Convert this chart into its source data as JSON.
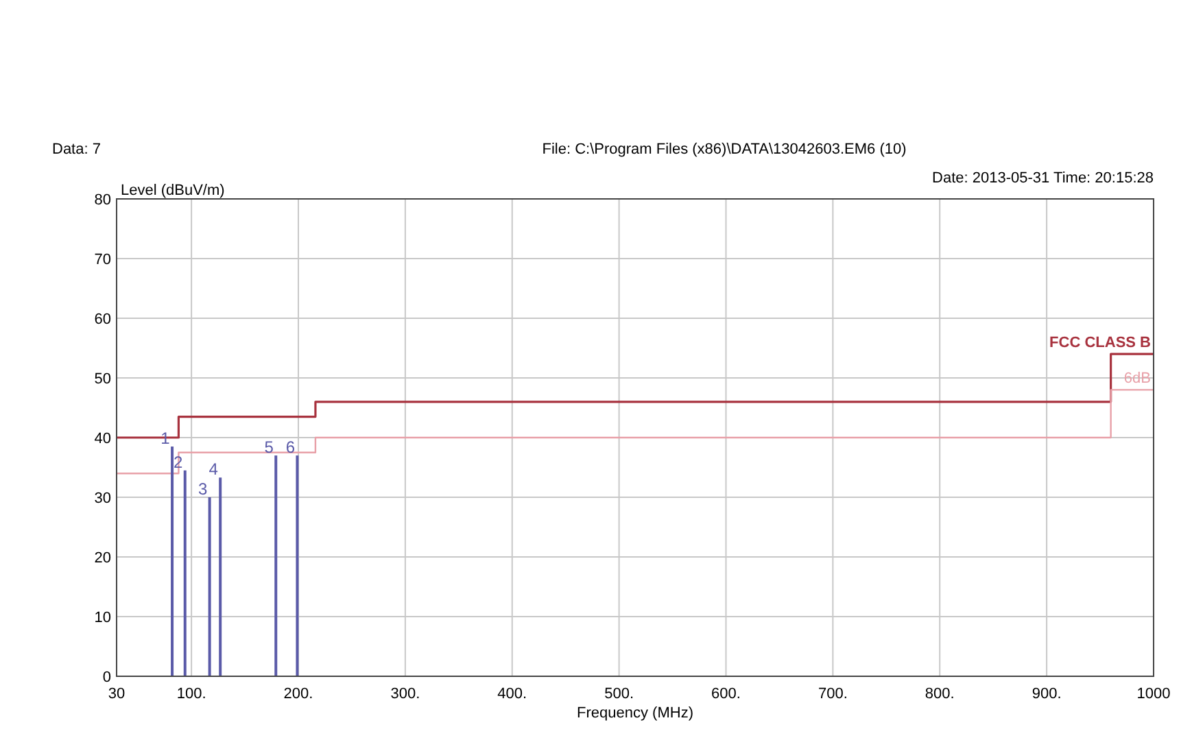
{
  "chart_data": {
    "type": "step",
    "xlabel": "Frequency (MHz)",
    "ylabel": "Level (dBuV/m)",
    "xlim": [
      30,
      1000
    ],
    "ylim": [
      0,
      80
    ],
    "xticks": [
      30,
      {
        "value": 100,
        "label": "100."
      },
      {
        "value": 200,
        "label": "200."
      },
      {
        "value": 300,
        "label": "300."
      },
      {
        "value": 400,
        "label": "400."
      },
      {
        "value": 500,
        "label": "500."
      },
      {
        "value": 600,
        "label": "600."
      },
      {
        "value": 700,
        "label": "700."
      },
      {
        "value": 800,
        "label": "800."
      },
      {
        "value": 900,
        "label": "900."
      },
      1000
    ],
    "yticks": [
      0,
      10,
      20,
      30,
      40,
      50,
      60,
      70,
      80
    ],
    "grid": true,
    "series": [
      {
        "name": "FCC CLASS B",
        "color": "#a8323e",
        "x": [
          30,
          88,
          216,
          960,
          1000
        ],
        "values": [
          40,
          43.5,
          46,
          54,
          54
        ]
      },
      {
        "name": "6dB",
        "color": "#e8a0a8",
        "x": [
          30,
          88,
          216,
          960,
          1000
        ],
        "values": [
          34,
          37.5,
          40,
          48,
          48
        ]
      },
      {
        "type": "bar",
        "color": "#5a5aa8",
        "x": [
          82,
          94,
          117,
          127,
          179,
          199
        ],
        "values": [
          38.5,
          34.5,
          30,
          33.3,
          37,
          37
        ]
      }
    ],
    "annotations": [
      "Data: 7",
      "File: C:\\Program Files (x86)\\DATA\\13042603.EM6  (10)",
      "Date: 2013-05-31  Time: 20:15:28",
      {
        "text": "1",
        "x": 82,
        "y": 38.5
      },
      {
        "text": "2",
        "x": 94,
        "y": 34.5
      },
      {
        "text": "3",
        "x": 117,
        "y": 30
      },
      {
        "text": "4",
        "x": 127,
        "y": 33.3
      },
      {
        "text": "5",
        "x": 179,
        "y": 37
      },
      {
        "text": "6",
        "x": 199,
        "y": 37
      }
    ]
  }
}
